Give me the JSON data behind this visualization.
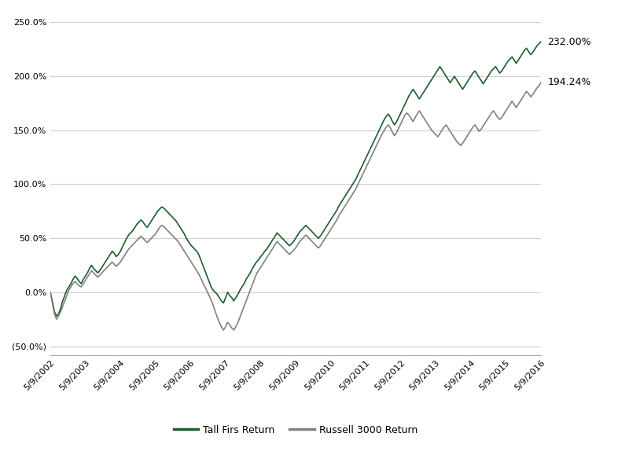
{
  "tall_firs": [
    0.0,
    -8.0,
    -18.0,
    -22.0,
    -20.0,
    -15.0,
    -8.0,
    -3.0,
    2.0,
    5.0,
    8.0,
    12.0,
    15.0,
    13.0,
    10.0,
    8.0,
    12.0,
    15.0,
    18.0,
    22.0,
    25.0,
    22.0,
    20.0,
    18.0,
    20.0,
    23.0,
    26.0,
    29.0,
    32.0,
    35.0,
    38.0,
    36.0,
    33.0,
    35.0,
    38.0,
    42.0,
    46.0,
    50.0,
    53.0,
    55.0,
    57.0,
    60.0,
    63.0,
    65.0,
    67.0,
    65.0,
    62.0,
    60.0,
    63.0,
    66.0,
    69.0,
    72.0,
    75.0,
    77.0,
    79.0,
    78.0,
    76.0,
    74.0,
    72.0,
    70.0,
    68.0,
    66.0,
    63.0,
    60.0,
    57.0,
    54.0,
    50.0,
    47.0,
    44.0,
    42.0,
    40.0,
    38.0,
    35.0,
    30.0,
    25.0,
    20.0,
    15.0,
    10.0,
    5.0,
    2.0,
    0.0,
    -2.0,
    -5.0,
    -8.0,
    -10.0,
    -5.0,
    0.0,
    -3.0,
    -5.0,
    -8.0,
    -5.0,
    -2.0,
    2.0,
    5.0,
    8.0,
    12.0,
    15.0,
    18.0,
    22.0,
    25.0,
    28.0,
    30.0,
    33.0,
    35.0,
    38.0,
    40.0,
    43.0,
    46.0,
    49.0,
    52.0,
    55.0,
    53.0,
    51.0,
    49.0,
    47.0,
    45.0,
    43.0,
    45.0,
    47.0,
    50.0,
    53.0,
    56.0,
    58.0,
    60.0,
    62.0,
    60.0,
    58.0,
    56.0,
    54.0,
    52.0,
    50.0,
    52.0,
    55.0,
    58.0,
    61.0,
    64.0,
    67.0,
    70.0,
    73.0,
    76.0,
    80.0,
    83.0,
    86.0,
    89.0,
    92.0,
    95.0,
    98.0,
    101.0,
    104.0,
    108.0,
    112.0,
    116.0,
    120.0,
    124.0,
    128.0,
    132.0,
    136.0,
    140.0,
    144.0,
    148.0,
    152.0,
    156.0,
    160.0,
    163.0,
    165.0,
    162.0,
    158.0,
    155.0,
    158.0,
    162.0,
    166.0,
    170.0,
    174.0,
    178.0,
    182.0,
    185.0,
    188.0,
    185.0,
    182.0,
    179.0,
    182.0,
    185.0,
    188.0,
    191.0,
    194.0,
    197.0,
    200.0,
    203.0,
    206.0,
    209.0,
    206.0,
    203.0,
    200.0,
    197.0,
    194.0,
    197.0,
    200.0,
    197.0,
    194.0,
    191.0,
    188.0,
    191.0,
    194.0,
    197.0,
    200.0,
    203.0,
    205.0,
    202.0,
    199.0,
    196.0,
    193.0,
    196.0,
    199.0,
    202.0,
    205.0,
    207.0,
    209.0,
    206.0,
    203.0,
    205.0,
    208.0,
    211.0,
    214.0,
    216.0,
    218.0,
    215.0,
    212.0,
    215.0,
    218.0,
    221.0,
    224.0,
    226.0,
    223.0,
    220.0,
    222.0,
    225.0,
    228.0,
    230.0,
    232.0
  ],
  "russell": [
    0.0,
    -10.0,
    -20.0,
    -25.0,
    -22.0,
    -18.0,
    -13.0,
    -8.0,
    -3.0,
    2.0,
    5.0,
    8.0,
    10.0,
    8.0,
    6.0,
    5.0,
    8.0,
    11.0,
    14.0,
    17.0,
    20.0,
    18.0,
    16.0,
    14.0,
    16.0,
    18.0,
    20.0,
    22.0,
    24.0,
    26.0,
    28.0,
    26.0,
    24.0,
    26.0,
    28.0,
    31.0,
    34.0,
    37.0,
    40.0,
    42.0,
    44.0,
    46.0,
    48.0,
    50.0,
    52.0,
    50.0,
    48.0,
    46.0,
    48.0,
    50.0,
    52.0,
    54.0,
    57.0,
    60.0,
    62.0,
    61.0,
    59.0,
    57.0,
    55.0,
    53.0,
    51.0,
    49.0,
    47.0,
    44.0,
    41.0,
    38.0,
    35.0,
    32.0,
    29.0,
    26.0,
    23.0,
    20.0,
    17.0,
    13.0,
    9.0,
    5.0,
    1.0,
    -3.0,
    -7.0,
    -12.0,
    -18.0,
    -23.0,
    -28.0,
    -32.0,
    -35.0,
    -32.0,
    -28.0,
    -30.0,
    -33.0,
    -35.0,
    -32.0,
    -28.0,
    -23.0,
    -18.0,
    -13.0,
    -8.0,
    -3.0,
    2.0,
    7.0,
    12.0,
    17.0,
    20.0,
    23.0,
    26.0,
    29.0,
    32.0,
    35.0,
    38.0,
    41.0,
    44.0,
    47.0,
    45.0,
    43.0,
    41.0,
    39.0,
    37.0,
    35.0,
    37.0,
    39.0,
    41.0,
    44.0,
    47.0,
    49.0,
    51.0,
    53.0,
    51.0,
    49.0,
    47.0,
    45.0,
    43.0,
    41.0,
    43.0,
    46.0,
    49.0,
    52.0,
    55.0,
    58.0,
    61.0,
    64.0,
    67.0,
    71.0,
    74.0,
    77.0,
    80.0,
    83.0,
    86.0,
    89.0,
    92.0,
    95.0,
    99.0,
    103.0,
    107.0,
    111.0,
    115.0,
    119.0,
    123.0,
    127.0,
    131.0,
    135.0,
    139.0,
    143.0,
    147.0,
    150.0,
    153.0,
    155.0,
    152.0,
    148.0,
    145.0,
    148.0,
    152.0,
    156.0,
    160.0,
    164.0,
    166.0,
    164.0,
    161.0,
    158.0,
    162.0,
    165.0,
    168.0,
    165.0,
    162.0,
    159.0,
    156.0,
    153.0,
    150.0,
    148.0,
    146.0,
    144.0,
    147.0,
    150.0,
    153.0,
    155.0,
    152.0,
    149.0,
    146.0,
    143.0,
    140.0,
    138.0,
    136.0,
    138.0,
    141.0,
    144.0,
    147.0,
    150.0,
    153.0,
    155.0,
    152.0,
    149.0,
    151.0,
    154.0,
    157.0,
    160.0,
    163.0,
    166.0,
    168.0,
    165.0,
    162.0,
    160.0,
    162.0,
    165.0,
    168.0,
    171.0,
    174.0,
    177.0,
    174.0,
    171.0,
    174.0,
    177.0,
    180.0,
    183.0,
    186.0,
    184.0,
    181.0,
    183.0,
    186.0,
    189.0,
    191.0,
    194.24
  ],
  "x_tick_labels": [
    "5/9/2002",
    "5/9/2003",
    "5/9/2004",
    "5/9/2005",
    "5/9/2006",
    "5/9/2007",
    "5/9/2008",
    "5/9/2009",
    "5/9/2010",
    "5/9/2011",
    "5/9/2012",
    "5/9/2013",
    "5/9/2014",
    "5/9/2015",
    "5/9/2016"
  ],
  "y_tick_labels": [
    "(50.0%)",
    "0.0%",
    "50.0%",
    "100.0%",
    "150.0%",
    "200.0%",
    "250.0%"
  ],
  "y_tick_values": [
    -50,
    0,
    50,
    100,
    150,
    200,
    250
  ],
  "tall_firs_color": "#1a5e2a",
  "russell_color": "#808080",
  "tall_firs_label": "Tall Firs Return",
  "russell_label": "Russell 3000 Return",
  "tall_firs_end_label": "232.00%",
  "russell_end_label": "194.24%",
  "ylim": [
    -58,
    258
  ],
  "background_color": "#ffffff",
  "line_width": 1.2,
  "grid_color": "#d0d0d0",
  "font_size_ticks": 8,
  "font_size_labels": 9,
  "legend_fontsize": 9
}
